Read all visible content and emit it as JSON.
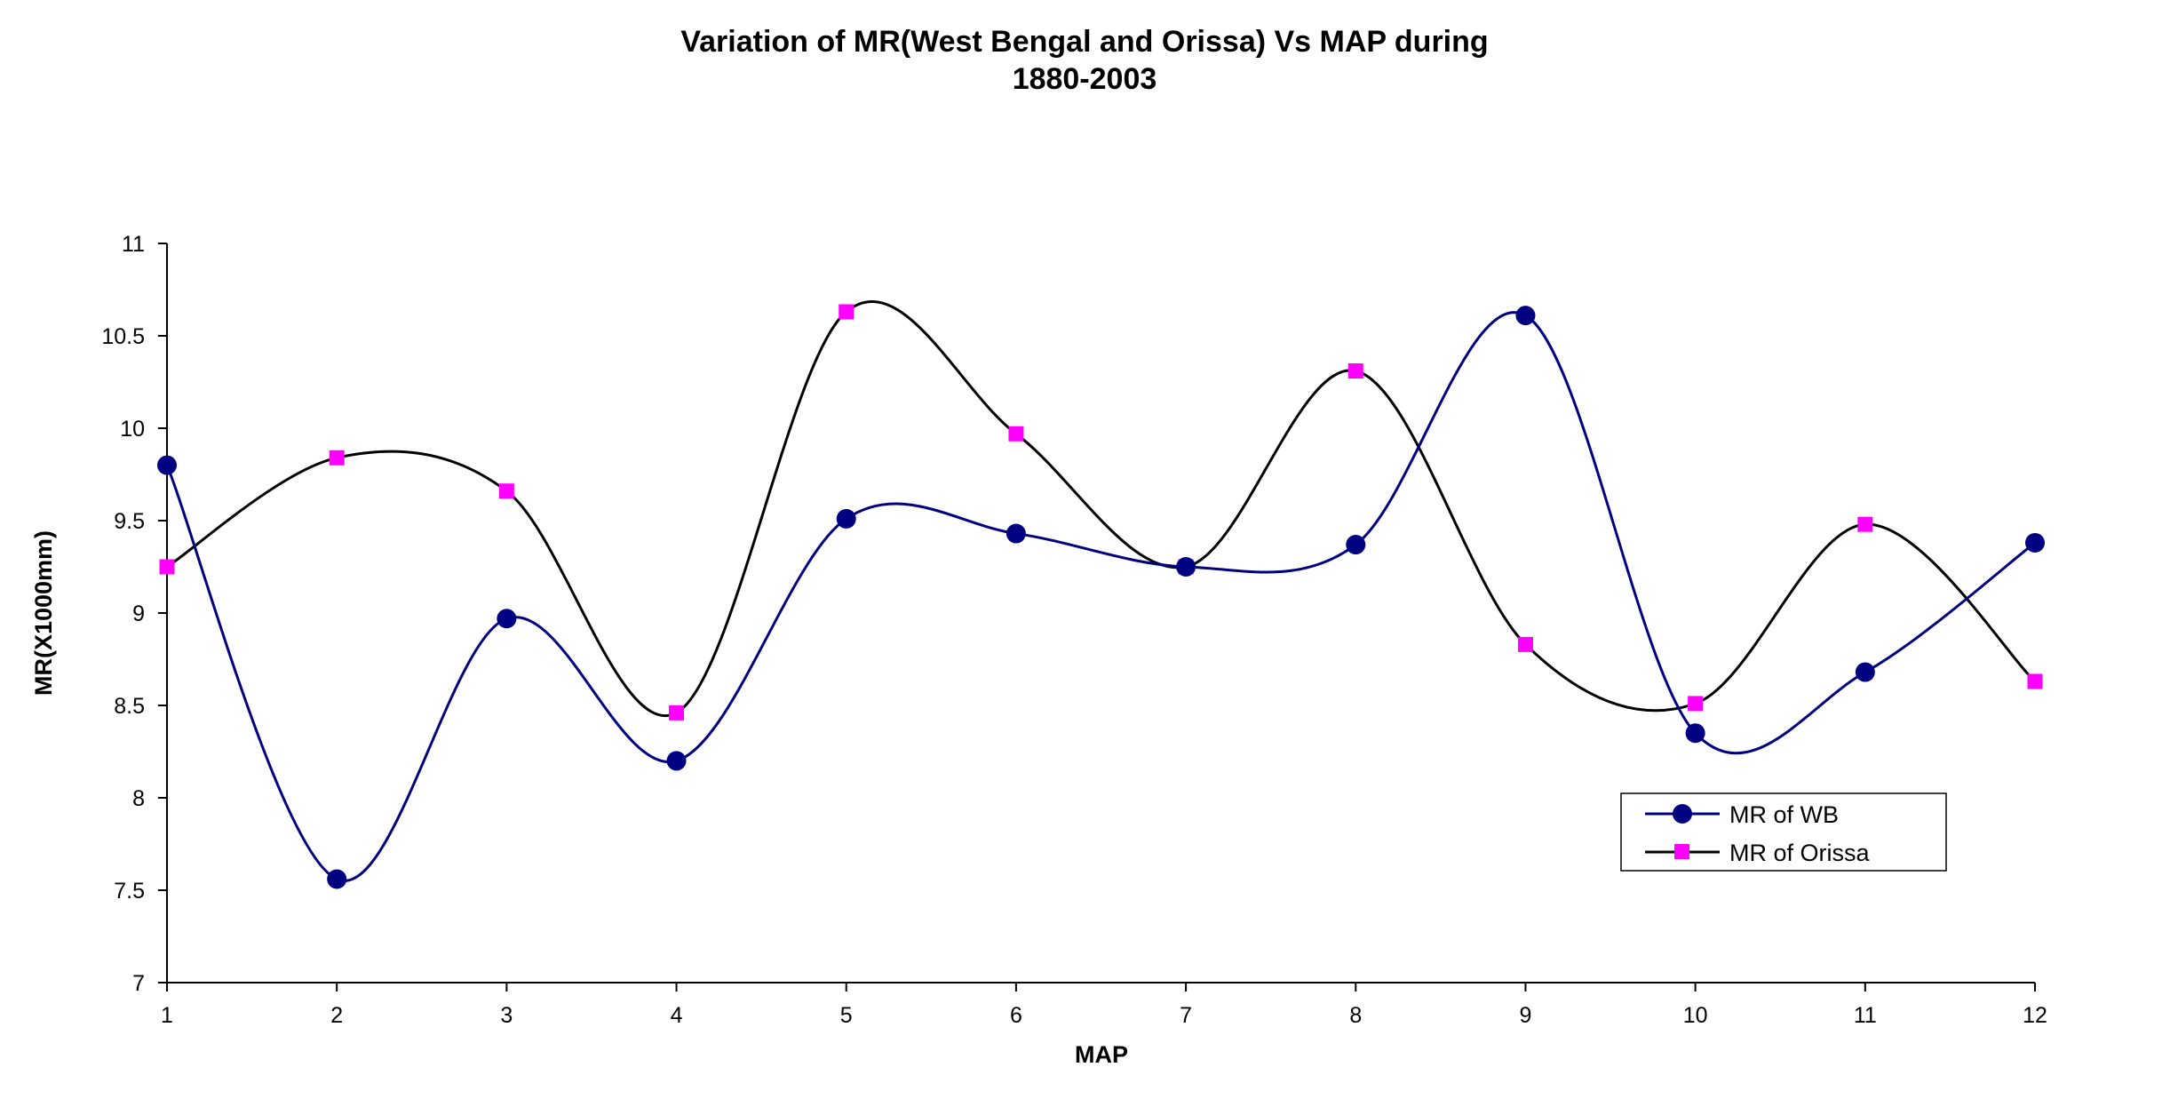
{
  "chart_data": {
    "type": "line",
    "title": [
      "Variation of MR(West Bengal and Orissa) Vs MAP during",
      "1880-2003"
    ],
    "xlabel": "MAP",
    "ylabel": "MR(X1000mm)",
    "categories": [
      "1",
      "2",
      "3",
      "4",
      "5",
      "6",
      "7",
      "8",
      "9",
      "10",
      "11",
      "12"
    ],
    "yticks": [
      "7",
      "7.5",
      "8",
      "8.5",
      "9",
      "9.5",
      "10",
      "10.5",
      "11"
    ],
    "ylim": [
      7,
      11
    ],
    "grid": false,
    "smooth": true,
    "legend_position": "bottom-right",
    "series": [
      {
        "name": "MR of WB",
        "marker": "circle",
        "line_color": "#000080",
        "marker_color": "#000080",
        "values": [
          9.8,
          7.56,
          8.97,
          8.2,
          9.51,
          9.43,
          9.25,
          9.37,
          10.61,
          8.35,
          8.68,
          9.38
        ]
      },
      {
        "name": "MR of Orissa",
        "marker": "square",
        "line_color": "#000000",
        "marker_color": "#FF00FF",
        "values": [
          9.25,
          9.84,
          9.66,
          8.46,
          10.63,
          9.97,
          9.25,
          10.31,
          8.83,
          8.51,
          9.48,
          8.63
        ]
      }
    ]
  }
}
